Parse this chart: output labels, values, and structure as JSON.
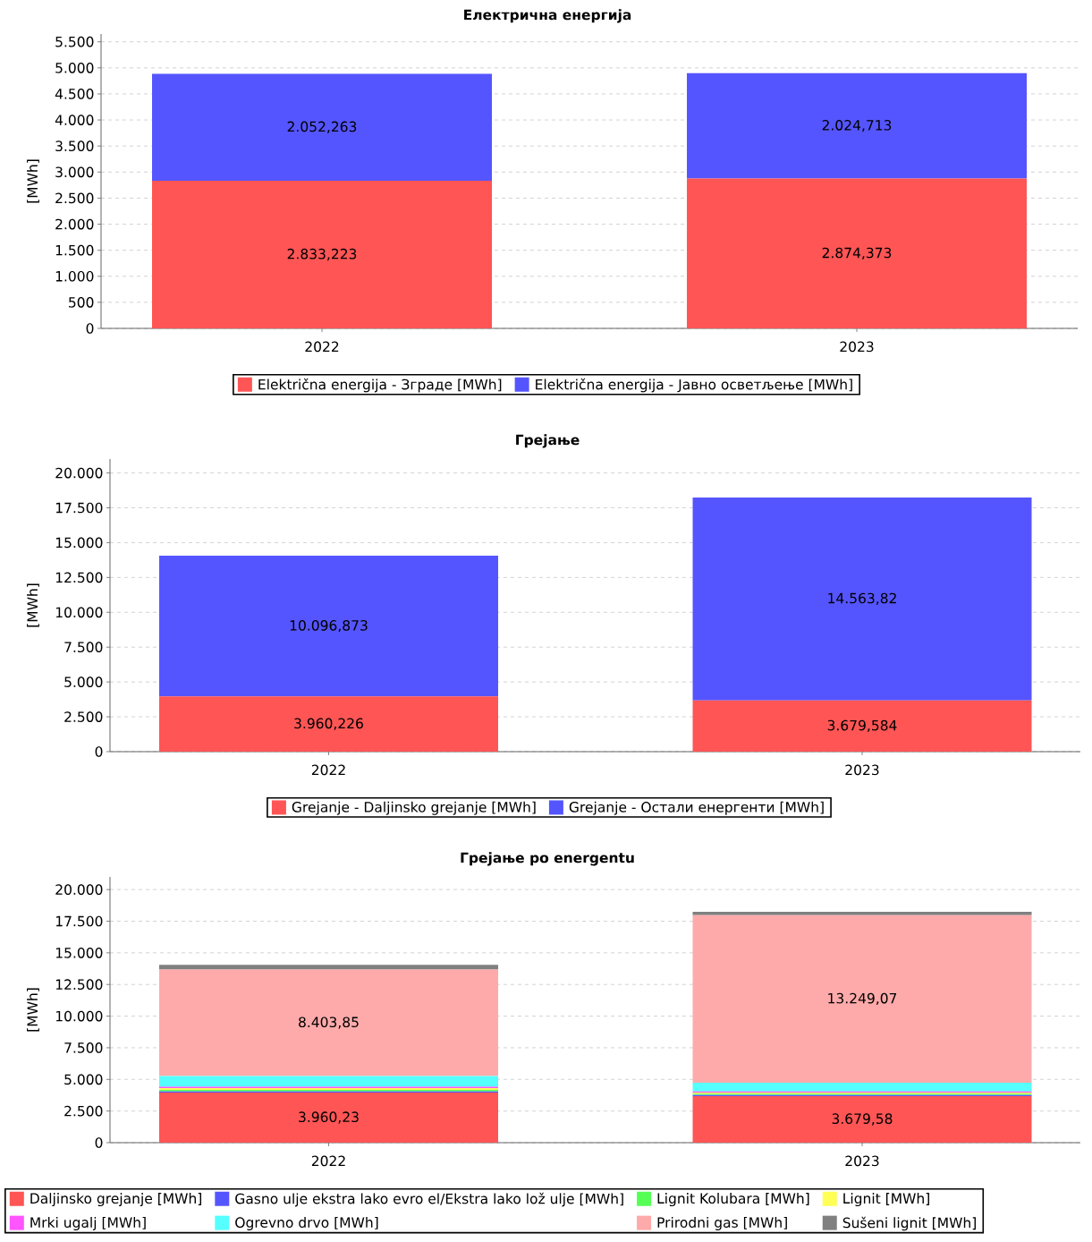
{
  "chart_data": [
    {
      "type": "bar",
      "stacked": true,
      "title": "Електрична енергија",
      "ylabel": "[MWh]",
      "categories": [
        "2022",
        "2023"
      ],
      "series": [
        {
          "name": "Električna energija - Зграде [MWh]",
          "color": "#ff5555",
          "values": [
            2833.223,
            2874.373
          ],
          "value_labels": [
            "2.833,223",
            "2.874,373"
          ]
        },
        {
          "name": "Električna energija - Јавно осветљење [MWh]",
          "color": "#5555ff",
          "values": [
            2052.263,
            2024.713
          ],
          "value_labels": [
            "2.052,263",
            "2.024,713"
          ]
        }
      ],
      "ylim": [
        0,
        5650
      ],
      "yticks": [
        0,
        500,
        {
          "value": 1000,
          "label": "1.000"
        },
        {
          "value": 1500,
          "label": "1.500"
        },
        {
          "value": 2000,
          "label": "2.000"
        },
        {
          "value": 2500,
          "label": "2.500"
        },
        {
          "value": 3000,
          "label": "3.000"
        },
        {
          "value": 3500,
          "label": "3.500"
        },
        {
          "value": 4000,
          "label": "4.000"
        },
        {
          "value": 4500,
          "label": "4.500"
        },
        {
          "value": 5000,
          "label": "5.000"
        },
        {
          "value": 5500,
          "label": "5.500"
        }
      ],
      "grid": "y",
      "legend": "bottom"
    },
    {
      "type": "bar",
      "stacked": true,
      "title": "Грејање",
      "ylabel": "[MWh]",
      "categories": [
        "2022",
        "2023"
      ],
      "series": [
        {
          "name": "Grejanje - Daljinsko grejanje [MWh]",
          "color": "#ff5555",
          "values": [
            3960.226,
            3679.584
          ],
          "value_labels": [
            "3.960,226",
            "3.679,584"
          ]
        },
        {
          "name": "Grejanje - Остали енергенти [MWh]",
          "color": "#5555ff",
          "values": [
            10096.873,
            14563.82
          ],
          "value_labels": [
            "10.096,873",
            "14.563,82"
          ]
        }
      ],
      "ylim": [
        0,
        21000
      ],
      "yticks": [
        0,
        {
          "value": 2500,
          "label": "2.500"
        },
        {
          "value": 5000,
          "label": "5.000"
        },
        {
          "value": 7500,
          "label": "7.500"
        },
        {
          "value": 10000,
          "label": "10.000"
        },
        {
          "value": 12500,
          "label": "12.500"
        },
        {
          "value": 15000,
          "label": "15.000"
        },
        {
          "value": 17500,
          "label": "17.500"
        },
        {
          "value": 20000,
          "label": "20.000"
        }
      ],
      "grid": "y",
      "legend": "bottom"
    },
    {
      "type": "bar",
      "stacked": true,
      "title": "Грејање po energentu",
      "ylabel": "[MWh]",
      "categories": [
        "2022",
        "2023"
      ],
      "series": [
        {
          "name": "Daljinsko grejanje [MWh]",
          "color": "#ff5555",
          "values": [
            3960.23,
            3679.58
          ],
          "value_labels": [
            "3.960,23",
            "3.679,58"
          ]
        },
        {
          "name": "Gasno ulje ekstra lako evro el/Ekstra lako lož ulje [MWh]",
          "color": "#5555ff",
          "values": [
            90,
            80
          ]
        },
        {
          "name": "Lignit Kolubara [MWh]",
          "color": "#55ff55",
          "values": [
            130,
            100
          ]
        },
        {
          "name": "Lignit [MWh]",
          "color": "#ffff55",
          "values": [
            130,
            100
          ]
        },
        {
          "name": "Mrki ugalj [MWh]",
          "color": "#ff55ff",
          "values": [
            110,
            90
          ]
        },
        {
          "name": "Ogrevno drvo [MWh]",
          "color": "#55ffff",
          "values": [
            850,
            680
          ]
        },
        {
          "name": "Prirodni gas [MWh]",
          "color": "#ffaaaa",
          "values": [
            8403.85,
            13249.07
          ],
          "value_labels": [
            "8.403,85",
            "13.249,07"
          ]
        },
        {
          "name": "Sušeni lignit [MWh]",
          "color": "#808080",
          "values": [
            380,
            270
          ]
        }
      ],
      "ylim": [
        0,
        21000
      ],
      "yticks": [
        0,
        {
          "value": 2500,
          "label": "2.500"
        },
        {
          "value": 5000,
          "label": "5.000"
        },
        {
          "value": 7500,
          "label": "7.500"
        },
        {
          "value": 10000,
          "label": "10.000"
        },
        {
          "value": 12500,
          "label": "12.500"
        },
        {
          "value": 15000,
          "label": "15.000"
        },
        {
          "value": 17500,
          "label": "17.500"
        },
        {
          "value": 20000,
          "label": "20.000"
        }
      ],
      "grid": "y",
      "legend": "bottom"
    }
  ]
}
